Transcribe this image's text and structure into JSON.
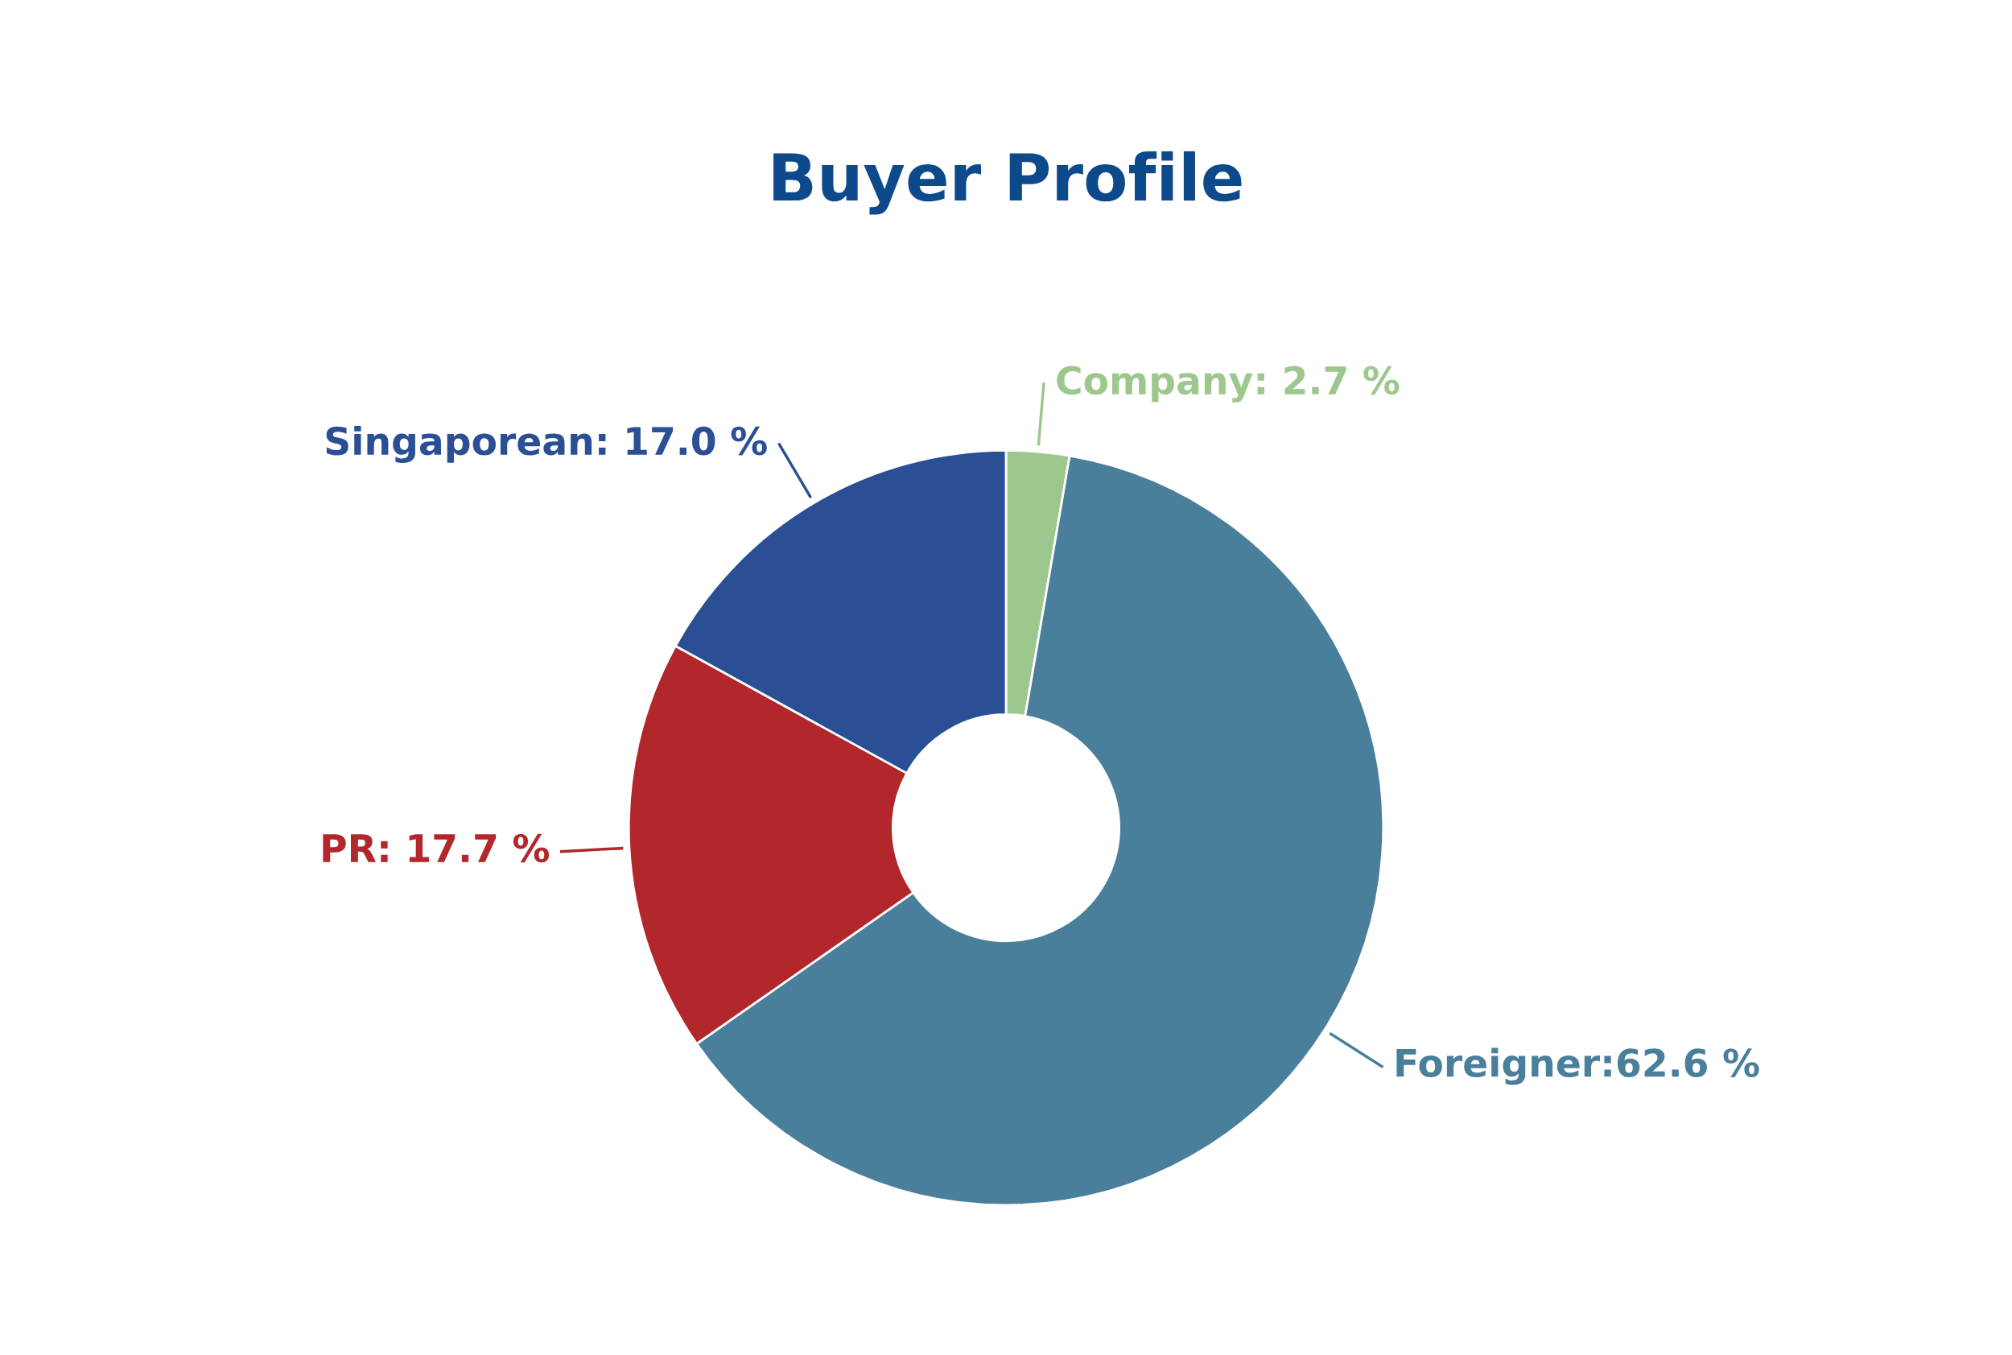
{
  "chart_data": {
    "type": "donut",
    "title": "Buyer Profile",
    "categories": [
      "Company: 2.7 %",
      "Foreigner:62.6 %",
      "PR: 17.7 %",
      "Singaporean: 17.0 %"
    ],
    "values": [
      2.7,
      62.6,
      17.7,
      17.0
    ],
    "colors": [
      "#9dc88d",
      "#4a7f9c",
      "#b2272b",
      "#2b4f95"
    ],
    "legend": false
  }
}
